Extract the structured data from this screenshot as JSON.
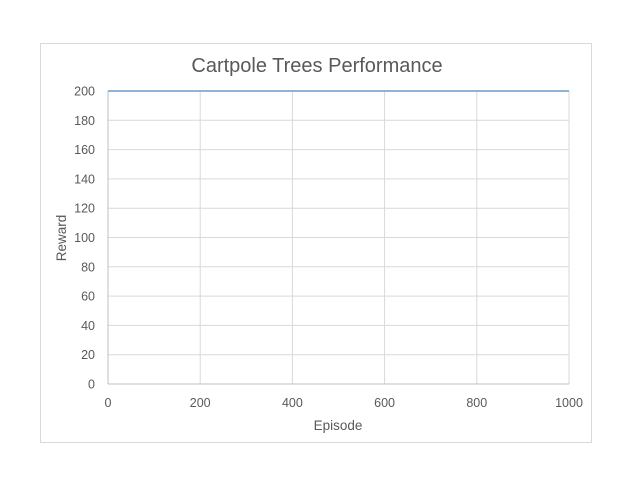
{
  "chart_data": {
    "type": "line",
    "title": "Cartpole Trees Performance",
    "xlabel": "Episode",
    "ylabel": "Reward",
    "xlim": [
      0,
      1000
    ],
    "ylim": [
      0,
      200
    ],
    "xticks": [
      0,
      200,
      400,
      600,
      800,
      1000
    ],
    "yticks": [
      0,
      20,
      40,
      60,
      80,
      100,
      120,
      140,
      160,
      180,
      200
    ],
    "grid": true,
    "legend": "none",
    "series": [
      {
        "x": [
          0,
          1000
        ],
        "y": [
          200,
          200
        ],
        "color": "#6a9bc9"
      }
    ]
  }
}
